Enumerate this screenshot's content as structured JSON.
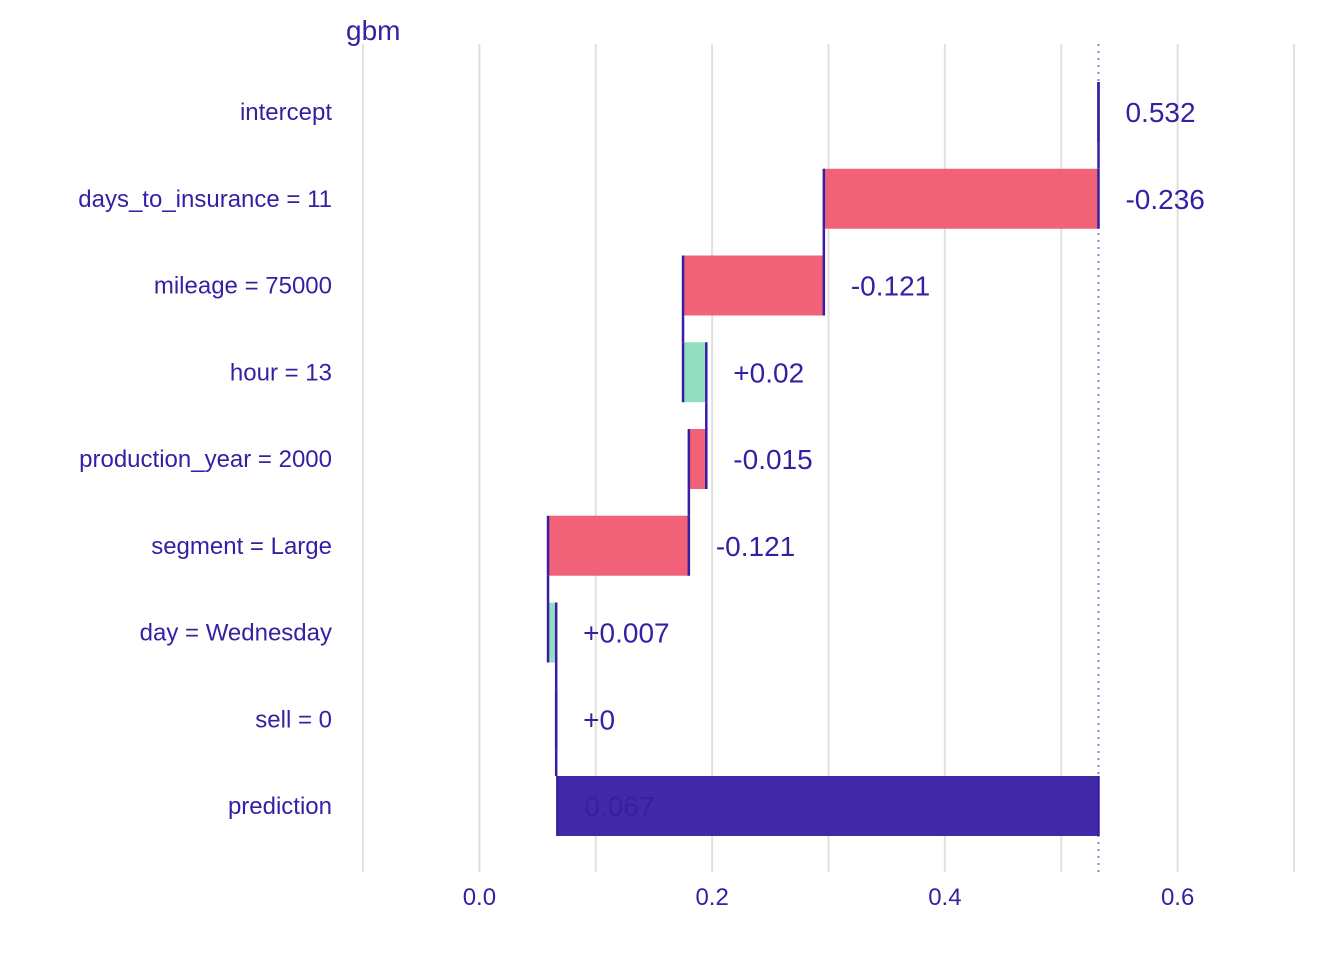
{
  "chart_data": {
    "type": "bar",
    "subtype": "waterfall (break-down)",
    "title": "gbm",
    "xlabel": "",
    "ylabel": "",
    "xlim": [
      -0.1,
      0.7
    ],
    "x_ticks": [
      0.0,
      0.2,
      0.4,
      0.6
    ],
    "x_tick_labels": [
      "0.0",
      "0.2",
      "0.4",
      "0.6"
    ],
    "grid": true,
    "legend": "none",
    "reference_line": 0.532,
    "categories": [
      "intercept",
      "days_to_insurance = 11",
      "mileage = 75000",
      "hour = 13",
      "production_year = 2000",
      "segment = Large",
      "day = Wednesday",
      "sell = 0",
      "prediction"
    ],
    "values": [
      0.532,
      -0.236,
      -0.121,
      0.02,
      -0.015,
      -0.121,
      0.007,
      0,
      0.067
    ],
    "bar_start": [
      0.532,
      0.532,
      0.296,
      0.175,
      0.195,
      0.18,
      0.059,
      0.066,
      0.067
    ],
    "bar_end": [
      0.532,
      0.296,
      0.175,
      0.195,
      0.18,
      0.059,
      0.066,
      0.066,
      0.532
    ],
    "value_labels": [
      "0.532",
      "-0.236",
      "-0.121",
      "+0.02",
      "-0.015",
      "-0.121",
      "+0.007",
      "+0",
      "0.067"
    ],
    "colors": {
      "positive": "#8bdcbe",
      "negative": "#f05a71",
      "prediction": "#371ea3",
      "text": "#371ea3",
      "connector": "#371ea3",
      "grid": "#e0e0e0"
    }
  }
}
